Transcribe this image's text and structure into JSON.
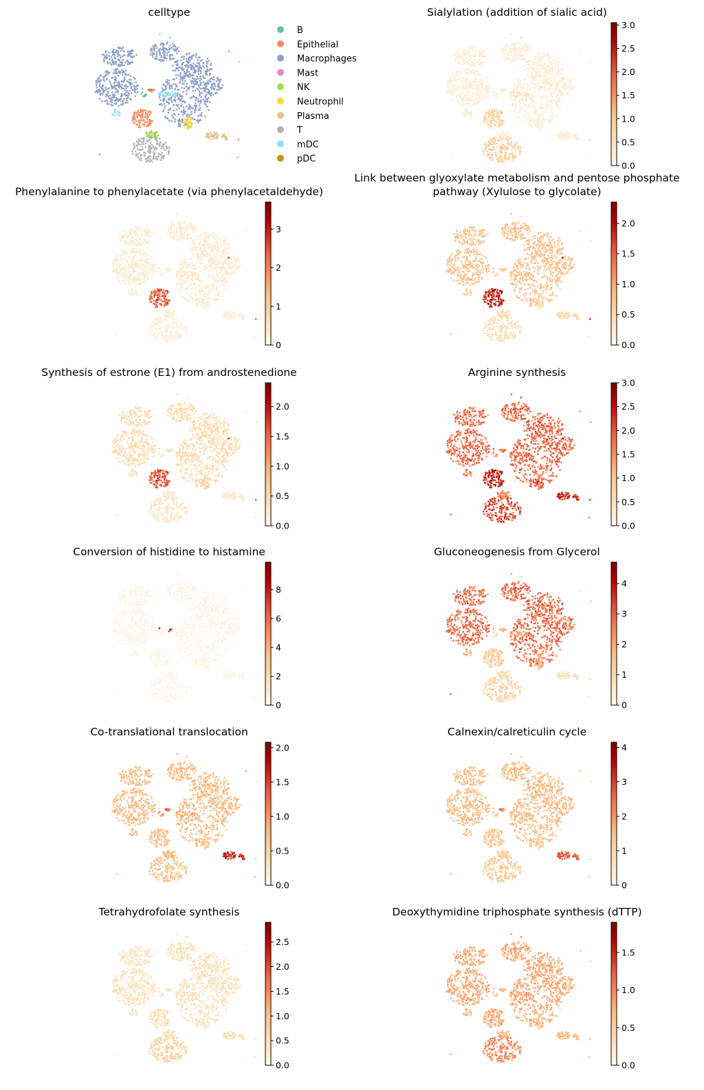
{
  "figure": {
    "colormap": "OrRd",
    "colormap_stops": [
      "#fff7ec",
      "#fee8c8",
      "#fdd49e",
      "#fdbb84",
      "#fc8d59",
      "#ef6548",
      "#d7301f",
      "#b30000",
      "#7f0000"
    ]
  },
  "chart_data": [
    {
      "type": "scatter",
      "title": "celltype",
      "embedding": "umap",
      "legend": {
        "placement": "right",
        "entries": [
          {
            "label": "B",
            "color": "#66c2a5"
          },
          {
            "label": "Epithelial",
            "color": "#fc8d62"
          },
          {
            "label": "Macrophages",
            "color": "#8da0cb"
          },
          {
            "label": "Mast",
            "color": "#e78ac3"
          },
          {
            "label": "NK",
            "color": "#a6d854"
          },
          {
            "label": "Neutrophil",
            "color": "#ffd92f"
          },
          {
            "label": "Plasma",
            "color": "#e5c494"
          },
          {
            "label": "T",
            "color": "#b3b3b3"
          },
          {
            "label": "mDC",
            "color": "#8ee0f9"
          },
          {
            "label": "pDC",
            "color": "#c8950c"
          }
        ]
      }
    },
    {
      "type": "scatter",
      "title": "Sialylation (addition of sialic acid)",
      "colorbar": {
        "range": [
          0.0,
          3.05
        ],
        "ticks": [
          "0.0",
          "0.5",
          "1.0",
          "1.5",
          "2.0",
          "2.5",
          "3.0"
        ],
        "tick_values": [
          0.0,
          0.5,
          1.0,
          1.5,
          2.0,
          2.5,
          3.0
        ]
      },
      "expression_by_celltype": {
        "B": 0.3,
        "Epithelial": 0.8,
        "Macrophages": 0.3,
        "Mast": 0.2,
        "NK": 0.2,
        "Neutrophil": 0.2,
        "Plasma": 0.3,
        "T": 0.9,
        "mDC": 0.5,
        "pDC": 0.3
      }
    },
    {
      "type": "scatter",
      "title": "Phenylalanine to phenylacetate (via phenylacetaldehyde)",
      "colorbar": {
        "range": [
          0.0,
          3.7
        ],
        "ticks": [
          "0",
          "1",
          "2",
          "3"
        ],
        "tick_values": [
          0,
          1,
          2,
          3
        ]
      },
      "expression_by_celltype": {
        "B": 0.2,
        "Epithelial": 2.4,
        "Macrophages": 0.45,
        "Mast": 0.4,
        "NK": 0.3,
        "Neutrophil": 0.3,
        "Plasma": 0.3,
        "T": 0.3,
        "mDC": 0.4,
        "pDC": 0.3
      }
    },
    {
      "type": "scatter",
      "title": "Link between glyoxylate metabolism and pentose phosphate pathway (Xylulose to glycolate)",
      "colorbar": {
        "range": [
          0.0,
          2.35
        ],
        "ticks": [
          "0.0",
          "0.5",
          "1.0",
          "1.5",
          "2.0"
        ],
        "tick_values": [
          0.0,
          0.5,
          1.0,
          1.5,
          2.0
        ]
      },
      "expression_by_celltype": {
        "B": 0.5,
        "Epithelial": 1.9,
        "Macrophages": 0.8,
        "Mast": 0.8,
        "NK": 0.5,
        "Neutrophil": 0.5,
        "Plasma": 0.5,
        "T": 0.45,
        "mDC": 0.7,
        "pDC": 0.6
      }
    },
    {
      "type": "scatter",
      "title": "Synthesis of estrone (E1) from androstenedione",
      "colorbar": {
        "range": [
          0.0,
          2.4
        ],
        "ticks": [
          "0.0",
          "0.5",
          "1.0",
          "1.5",
          "2.0"
        ],
        "tick_values": [
          0.0,
          0.5,
          1.0,
          1.5,
          2.0
        ]
      },
      "expression_by_celltype": {
        "B": 0.3,
        "Epithelial": 1.6,
        "Macrophages": 0.5,
        "Mast": 0.5,
        "NK": 0.3,
        "Neutrophil": 0.6,
        "Plasma": 0.3,
        "T": 0.35,
        "mDC": 0.5,
        "pDC": 0.3
      }
    },
    {
      "type": "scatter",
      "title": "Arginine synthesis",
      "colorbar": {
        "range": [
          0.0,
          3.0
        ],
        "ticks": [
          "0.0",
          "0.5",
          "1.0",
          "1.5",
          "2.0",
          "2.5",
          "3.0"
        ],
        "tick_values": [
          0.0,
          0.5,
          1.0,
          1.5,
          2.0,
          2.5,
          3.0
        ]
      },
      "expression_by_celltype": {
        "B": 1.4,
        "Epithelial": 2.4,
        "Macrophages": 1.8,
        "Mast": 1.8,
        "NK": 1.6,
        "Neutrophil": 1.9,
        "Plasma": 2.3,
        "T": 2.1,
        "mDC": 1.7,
        "pDC": 1.5
      }
    },
    {
      "type": "scatter",
      "title": "Conversion of histidine to histamine",
      "colorbar": {
        "range": [
          0,
          9.9
        ],
        "ticks": [
          "0",
          "2",
          "4",
          "6",
          "8"
        ],
        "tick_values": [
          0,
          2,
          4,
          6,
          8
        ]
      },
      "expression_by_celltype": {
        "B": 0.2,
        "Epithelial": 0.3,
        "Macrophages": 0.3,
        "Mast": 7.5,
        "NK": 0.2,
        "Neutrophil": 0.3,
        "Plasma": 0.2,
        "T": 0.2,
        "mDC": 0.3,
        "pDC": 0.2
      }
    },
    {
      "type": "scatter",
      "title": "Gluconeogenesis from Glycerol",
      "colorbar": {
        "range": [
          0,
          4.7
        ],
        "ticks": [
          "0",
          "1",
          "2",
          "3",
          "4"
        ],
        "tick_values": [
          0,
          1,
          2,
          3,
          4
        ]
      },
      "expression_by_celltype": {
        "B": 0.8,
        "Epithelial": 1.4,
        "Macrophages": 2.8,
        "Mast": 2.0,
        "NK": 1.0,
        "Neutrophil": 2.0,
        "Plasma": 0.8,
        "T": 1.2,
        "mDC": 2.0,
        "pDC": 1.6
      }
    },
    {
      "type": "scatter",
      "title": "Co-translational translocation",
      "colorbar": {
        "range": [
          0.0,
          2.08
        ],
        "ticks": [
          "0.0",
          "0.5",
          "1.0",
          "1.5",
          "2.0"
        ],
        "tick_values": [
          0.0,
          0.5,
          1.0,
          1.5,
          2.0
        ]
      },
      "expression_by_celltype": {
        "B": 1.0,
        "Epithelial": 0.7,
        "Macrophages": 0.75,
        "Mast": 0.6,
        "NK": 0.8,
        "Neutrophil": 0.6,
        "Plasma": 1.6,
        "T": 0.7,
        "mDC": 0.8,
        "pDC": 1.3
      }
    },
    {
      "type": "scatter",
      "title": "Calnexin/calreticulin cycle",
      "colorbar": {
        "range": [
          0,
          4.15
        ],
        "ticks": [
          "0",
          "1",
          "2",
          "3",
          "4"
        ],
        "tick_values": [
          0,
          1,
          2,
          3,
          4
        ]
      },
      "expression_by_celltype": {
        "B": 1.4,
        "Epithelial": 1.3,
        "Macrophages": 1.5,
        "Mast": 1.3,
        "NK": 1.2,
        "Neutrophil": 1.1,
        "Plasma": 2.7,
        "T": 1.3,
        "mDC": 1.4,
        "pDC": 2.3
      }
    },
    {
      "type": "scatter",
      "title": "Tetrahydrofolate synthesis",
      "colorbar": {
        "range": [
          0.0,
          2.9
        ],
        "ticks": [
          "0.0",
          "0.5",
          "1.0",
          "1.5",
          "2.0",
          "2.5"
        ],
        "tick_values": [
          0.0,
          0.5,
          1.0,
          1.5,
          2.0,
          2.5
        ]
      },
      "expression_by_celltype": {
        "B": 0.4,
        "Epithelial": 0.5,
        "Macrophages": 0.5,
        "Mast": 0.4,
        "NK": 0.5,
        "Neutrophil": 0.3,
        "Plasma": 0.5,
        "T": 0.8,
        "mDC": 0.5,
        "pDC": 0.4
      }
    },
    {
      "type": "scatter",
      "title": "Deoxythymidine triphosphate synthesis (dTTP)",
      "colorbar": {
        "range": [
          0.0,
          1.9
        ],
        "ticks": [
          "0.0",
          "0.5",
          "1.0",
          "1.5"
        ],
        "tick_values": [
          0.0,
          0.5,
          1.0,
          1.5
        ]
      },
      "expression_by_celltype": {
        "B": 0.6,
        "Epithelial": 0.8,
        "Macrophages": 0.8,
        "Mast": 0.7,
        "NK": 0.7,
        "Neutrophil": 0.6,
        "Plasma": 0.7,
        "T": 1.0,
        "mDC": 0.8,
        "pDC": 0.7
      }
    }
  ]
}
